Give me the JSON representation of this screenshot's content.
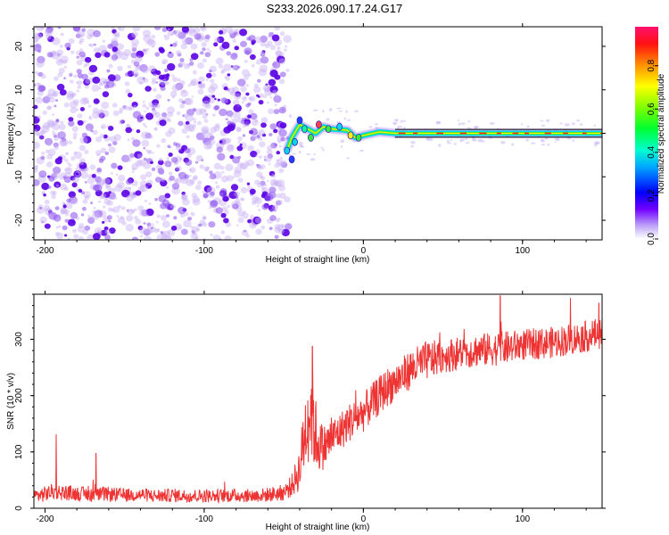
{
  "title": "S233.2026.090.17.24.G17",
  "colors": {
    "snr_line": "#ee3333",
    "dense": "#5a00e6",
    "faint": "#c8b0f5",
    "signal_core": "#ff2222",
    "signal_mid": "#33ee33",
    "signal_edge": "#00d8e8",
    "axis": "#000000"
  },
  "chart_data": [
    {
      "type": "heatmap",
      "title": "S233.2026.090.17.24.G17",
      "xlabel": "Height of straight line (km)",
      "ylabel": "Frequency (Hz)",
      "xlim": [
        -207,
        150
      ],
      "ylim": [
        -24.5,
        24.5
      ],
      "xticks": [
        -200,
        -100,
        0,
        100
      ],
      "xtick_labels": [
        "-200",
        "-100",
        "0",
        "100"
      ],
      "yticks": [
        -20,
        -10,
        0,
        10,
        20
      ],
      "ytick_labels": [
        "-20",
        "-10",
        "0",
        "10",
        "20"
      ],
      "noise_region_x": [
        -207,
        -47
      ],
      "signal_path": [
        {
          "x": -48,
          "f": -4
        },
        {
          "x": -45,
          "f": -1
        },
        {
          "x": -40,
          "f": 2
        },
        {
          "x": -35,
          "f": 1
        },
        {
          "x": -30,
          "f": 0
        },
        {
          "x": -25,
          "f": 1.5
        },
        {
          "x": -20,
          "f": 1
        },
        {
          "x": -10,
          "f": 0.7
        },
        {
          "x": -5,
          "f": -1
        },
        {
          "x": 0,
          "f": -0.5
        },
        {
          "x": 10,
          "f": 0.3
        },
        {
          "x": 20,
          "f": 0
        },
        {
          "x": 60,
          "f": 0
        },
        {
          "x": 150,
          "f": 0
        }
      ],
      "colorbar": {
        "label": "Normalized spectral amplitude",
        "ticks": [
          0.0,
          0.2,
          0.4,
          0.6,
          0.8
        ],
        "tick_labels": [
          "0.0",
          "0.2",
          "0.4",
          "0.6",
          "0.8"
        ],
        "range": [
          0,
          0.98
        ]
      }
    },
    {
      "type": "line",
      "xlabel": "Height of straight line (km)",
      "ylabel": "SNR (10 * v/v)",
      "xlim": [
        -207,
        150
      ],
      "ylim": [
        0,
        380
      ],
      "xticks": [
        -200,
        -100,
        0,
        100
      ],
      "xtick_labels": [
        "-200",
        "-100",
        "0",
        "100"
      ],
      "yticks": [
        0,
        100,
        200,
        300
      ],
      "ytick_labels": [
        "0",
        "100",
        "200",
        "300"
      ],
      "series": [
        {
          "name": "SNR",
          "x": [
            -207,
            -200,
            -195,
            -190,
            -180,
            -170,
            -160,
            -150,
            -140,
            -130,
            -120,
            -110,
            -100,
            -90,
            -80,
            -70,
            -60,
            -50,
            -45,
            -40,
            -36,
            -33,
            -30,
            -27,
            -24,
            -20,
            -15,
            -10,
            -5,
            0,
            5,
            10,
            15,
            20,
            25,
            30,
            35,
            40,
            50,
            60,
            70,
            80,
            90,
            100,
            110,
            120,
            130,
            140,
            150
          ],
          "values": [
            22,
            25,
            30,
            28,
            26,
            24,
            25,
            23,
            24,
            22,
            23,
            22,
            22,
            22,
            23,
            22,
            24,
            28,
            40,
            70,
            150,
            180,
            130,
            110,
            110,
            125,
            135,
            150,
            160,
            170,
            185,
            200,
            215,
            225,
            235,
            248,
            255,
            262,
            270,
            275,
            280,
            282,
            285,
            290,
            292,
            295,
            300,
            305,
            312
          ],
          "noise_amplitude": [
            12,
            14,
            14,
            14,
            13,
            13,
            13,
            12,
            12,
            12,
            12,
            12,
            12,
            12,
            12,
            12,
            13,
            15,
            20,
            40,
            80,
            90,
            70,
            45,
            40,
            35,
            35,
            35,
            35,
            35,
            35,
            35,
            35,
            35,
            35,
            35,
            35,
            35,
            30,
            30,
            30,
            30,
            30,
            28,
            28,
            28,
            28,
            28,
            28
          ],
          "peaks": [
            {
              "x": -193,
              "y": 131
            },
            {
              "x": -168,
              "y": 98
            },
            {
              "x": -32,
              "y": 288
            },
            {
              "x": 86,
              "y": 378
            },
            {
              "x": 148,
              "y": 365
            }
          ]
        }
      ]
    }
  ]
}
